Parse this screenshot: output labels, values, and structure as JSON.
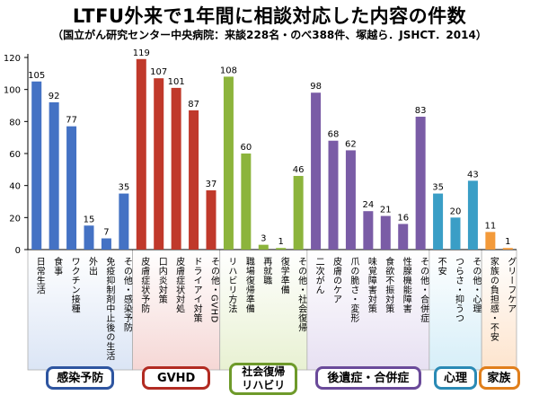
{
  "header": {
    "title": "LTFU外来で1年間に相談対応した内容の件数",
    "subtitle": "（国立がん研究センター中央病院：来談228名・のべ388件、塚越ら．JSHCT．2014）"
  },
  "chart_data": {
    "type": "bar",
    "ylim": [
      0,
      120
    ],
    "yticks": [
      0,
      20,
      40,
      60,
      80,
      100,
      120
    ],
    "grid": false,
    "categories": [
      "日常生活",
      "食事",
      "ワクチン接種",
      "外出",
      "免疫抑制剤中止後の生活",
      "その他・感染予防",
      "皮膚症状予防",
      "口内炎対策",
      "皮膚症状対処",
      "ドライアイ対策",
      "その他・GVHD",
      "リハビリ方法",
      "職場復帰準備",
      "再就職",
      "復学準備",
      "その他・社会復帰",
      "二次がん",
      "皮膚のケア",
      "爪の脆さ・変形",
      "味覚障害対策",
      "食欲不振対策",
      "性腺機能障害",
      "その他・合併症",
      "不安",
      "つらさ・抑うつ",
      "その他・心理",
      "家族の負担感・不安",
      "グリーフケア"
    ],
    "values": [
      105,
      92,
      77,
      15,
      7,
      35,
      119,
      107,
      101,
      87,
      37,
      108,
      60,
      3,
      1,
      46,
      98,
      68,
      62,
      24,
      21,
      16,
      83,
      35,
      20,
      43,
      11,
      1
    ],
    "groups": [
      {
        "name": "感染予防",
        "label_lines": [
          "感染予防"
        ],
        "count": 6,
        "bar_color": "#4472c4",
        "bg_color": "#dbe5f5",
        "border_color": "#2e55a0"
      },
      {
        "name": "GVHD",
        "label_lines": [
          "GVHD"
        ],
        "count": 5,
        "bar_color": "#c0392b",
        "bg_color": "#f5d7d5",
        "border_color": "#b22b22"
      },
      {
        "name": "社会復帰リハビリ",
        "label_lines": [
          "社会復帰",
          "リハビリ"
        ],
        "count": 5,
        "bar_color": "#8cb43c",
        "bg_color": "#e8f1d2",
        "border_color": "#6e9a2a"
      },
      {
        "name": "後遺症・合併症",
        "label_lines": [
          "後遺症・合併症"
        ],
        "count": 7,
        "bar_color": "#7a5ca6",
        "bg_color": "#e7e0f2",
        "border_color": "#6a4a9a"
      },
      {
        "name": "心理",
        "label_lines": [
          "心理"
        ],
        "count": 3,
        "bar_color": "#3a9ec6",
        "bg_color": "#d6eef8",
        "border_color": "#2a8ab5"
      },
      {
        "name": "家族",
        "label_lines": [
          "家族"
        ],
        "count": 2,
        "bar_color": "#f39a3a",
        "bg_color": "#fde4cd",
        "border_color": "#e07f1c"
      }
    ]
  }
}
